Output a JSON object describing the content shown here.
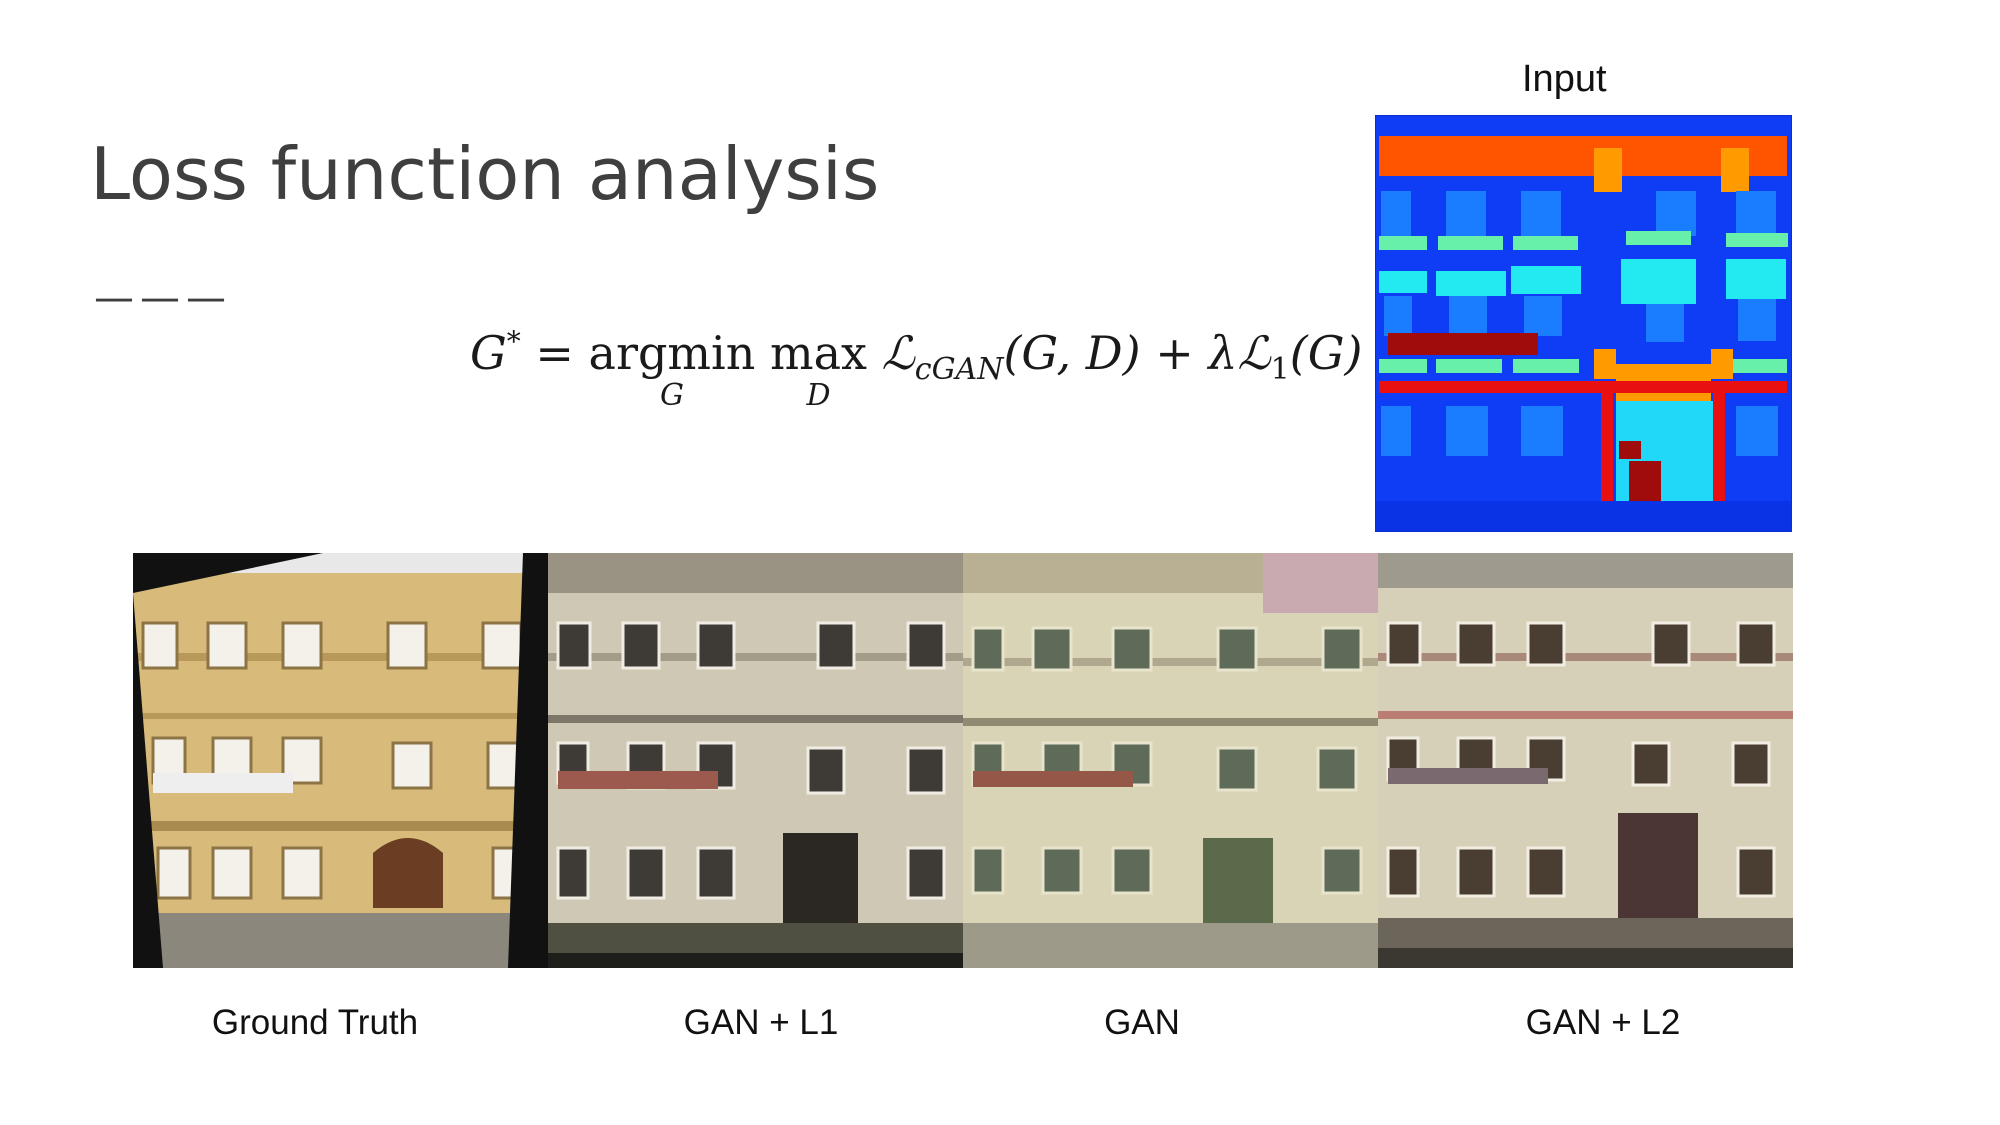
{
  "slide": {
    "title": "Loss function analysis",
    "title_rule": "———",
    "equation": {
      "lhs": "G",
      "lhs_sup": "*",
      "eq": " = ",
      "argmin": "argmin",
      "argmin_under": "G",
      "max": "max",
      "max_under": "D",
      "loss_cgan": "ℒ",
      "loss_cgan_sub": "cGAN",
      "loss_cgan_args": "(G, D)",
      "plus": " + ",
      "lambda": "λ",
      "loss_l1": "ℒ",
      "loss_l1_sub": "1",
      "loss_l1_args": "(G)"
    },
    "input_label": "Input",
    "captions": [
      "Ground Truth",
      "GAN + L1",
      "GAN",
      "GAN + L2"
    ]
  },
  "colors": {
    "title": "#3f3f3f",
    "map_background": "#0f3cf5",
    "map_facade_top": "#ff5500",
    "map_window": "#1a7dff",
    "map_sill": "#66f0aa",
    "map_balcony": "#22eaf0",
    "map_door": "#ff9a00",
    "map_pillar": "#e81010",
    "map_dark_red": "#a00c0c",
    "facade_yellow": "#d8bb7a",
    "facade_gray": "#c9c2ad"
  }
}
